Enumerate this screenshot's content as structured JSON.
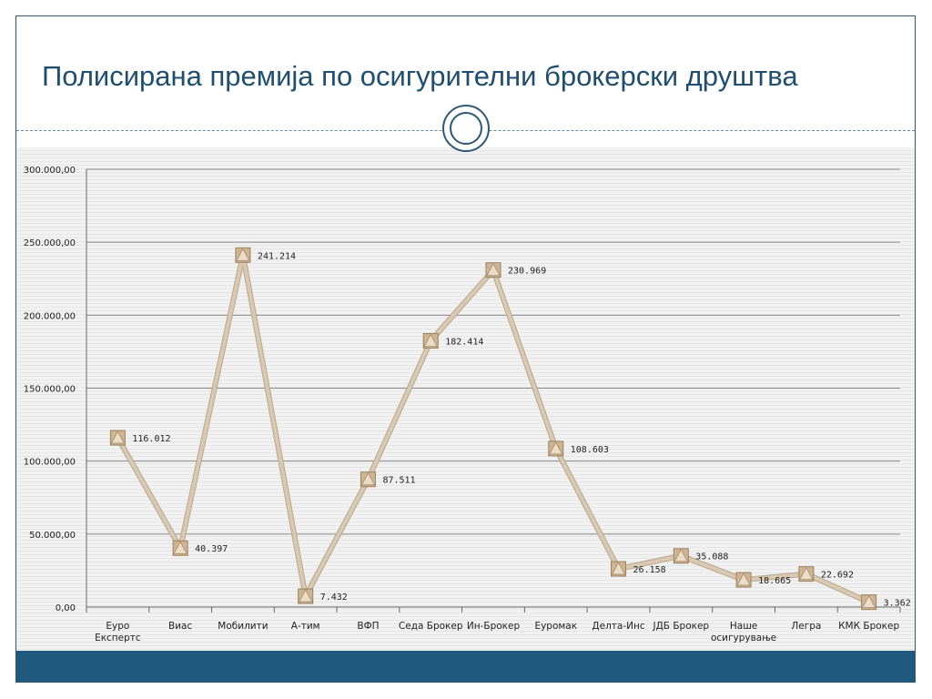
{
  "slide": {
    "title": "Полисирана премија по осигурителни брокерски друштва"
  },
  "colors": {
    "title": "#1f4e6e",
    "frame": "#2e5874",
    "footer": "#1f5a7e",
    "line": "#d9c8b2",
    "line_edge": "#b9a68e",
    "marker": "#cfb493"
  },
  "chart_data": {
    "type": "line",
    "categories": [
      [
        "Еуро",
        "Експертс"
      ],
      [
        "Виас"
      ],
      [
        "Мобилити"
      ],
      [
        "А-тим"
      ],
      [
        "ВФП"
      ],
      [
        "Седа Брокер"
      ],
      [
        "Ин-Брокер"
      ],
      [
        "Еуромак"
      ],
      [
        "Делта-Инс"
      ],
      [
        "ЈДБ Брокер"
      ],
      [
        "Наше",
        "осигурување"
      ],
      [
        "Легра"
      ],
      [
        "КМК Брокер"
      ]
    ],
    "series": [
      {
        "values": [
          116012,
          40397,
          241214,
          7432,
          87511,
          182414,
          230969,
          108603,
          26158,
          35088,
          18665,
          22692,
          3362
        ],
        "data_labels": [
          "116.012",
          "40.397",
          "241.214",
          "7.432",
          "87.511",
          "182.414",
          "230.969",
          "108.603",
          "26.158",
          "35.088",
          "18.665",
          "22.692",
          "3.362"
        ]
      }
    ],
    "yticks": [
      "0,00",
      "50.000,00",
      "100.000,00",
      "150.000,00",
      "200.000,00",
      "250.000,00",
      "300.000,00"
    ],
    "ylim": [
      0,
      300000
    ],
    "grid": true,
    "legend": "none"
  }
}
